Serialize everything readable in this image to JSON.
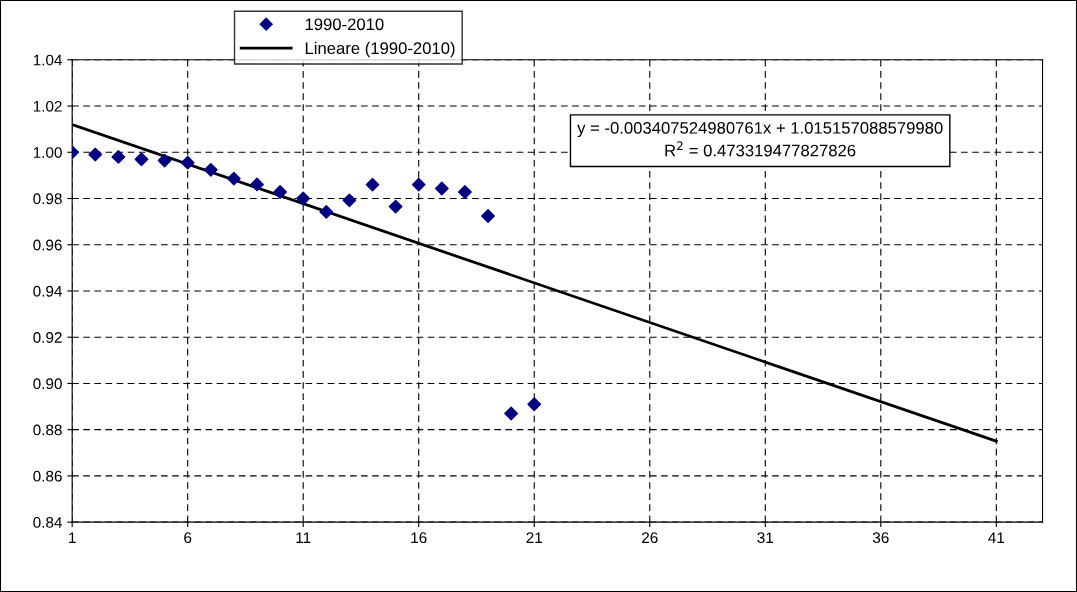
{
  "chart_data": {
    "type": "scatter",
    "x": [
      1,
      2,
      3,
      4,
      5,
      6,
      7,
      8,
      9,
      10,
      11,
      12,
      13,
      14,
      15,
      16,
      17,
      18,
      19,
      20,
      21
    ],
    "series": [
      {
        "name": "1990-2010",
        "color": "#000080",
        "marker": "diamond",
        "values": [
          1.0,
          0.999,
          0.998,
          0.997,
          0.9964,
          0.9955,
          0.9924,
          0.9886,
          0.9861,
          0.9828,
          0.98,
          0.9742,
          0.9792,
          0.986,
          0.9765,
          0.986,
          0.9843,
          0.9828,
          0.9724,
          0.887,
          0.891
        ]
      },
      {
        "name": "Lineare (1990-2010)",
        "type": "line",
        "color": "#000000",
        "marker": "none",
        "line_style": "solid",
        "x": [
          1,
          41
        ],
        "values": [
          1.012,
          0.875
        ]
      }
    ],
    "annotations": [
      "y = -0.003407524980761x + 1.015157088579980\nR$^{2}$ = 0.473319477827826"
    ],
    "xlim": [
      1,
      43
    ],
    "xticks": [
      1,
      6,
      11,
      16,
      21,
      26,
      31,
      36,
      41
    ],
    "ylim": [
      0.84,
      1.04
    ],
    "yticks": [
      {
        "value": 0.84,
        "label": "0.84"
      },
      {
        "value": 0.86,
        "label": "0.86"
      },
      {
        "value": 0.88,
        "label": "0.88"
      },
      {
        "value": 0.9,
        "label": "0.90"
      },
      {
        "value": 0.92,
        "label": "0.92"
      },
      {
        "value": 0.94,
        "label": "0.94"
      },
      {
        "value": 0.96,
        "label": "0.96"
      },
      {
        "value": 0.98,
        "label": "0.98"
      },
      {
        "value": 1.0,
        "label": "1.00"
      },
      {
        "value": 1.02,
        "label": "1.02"
      },
      {
        "value": 1.04,
        "label": "1.04"
      }
    ],
    "grid": true,
    "legend": "top left"
  }
}
